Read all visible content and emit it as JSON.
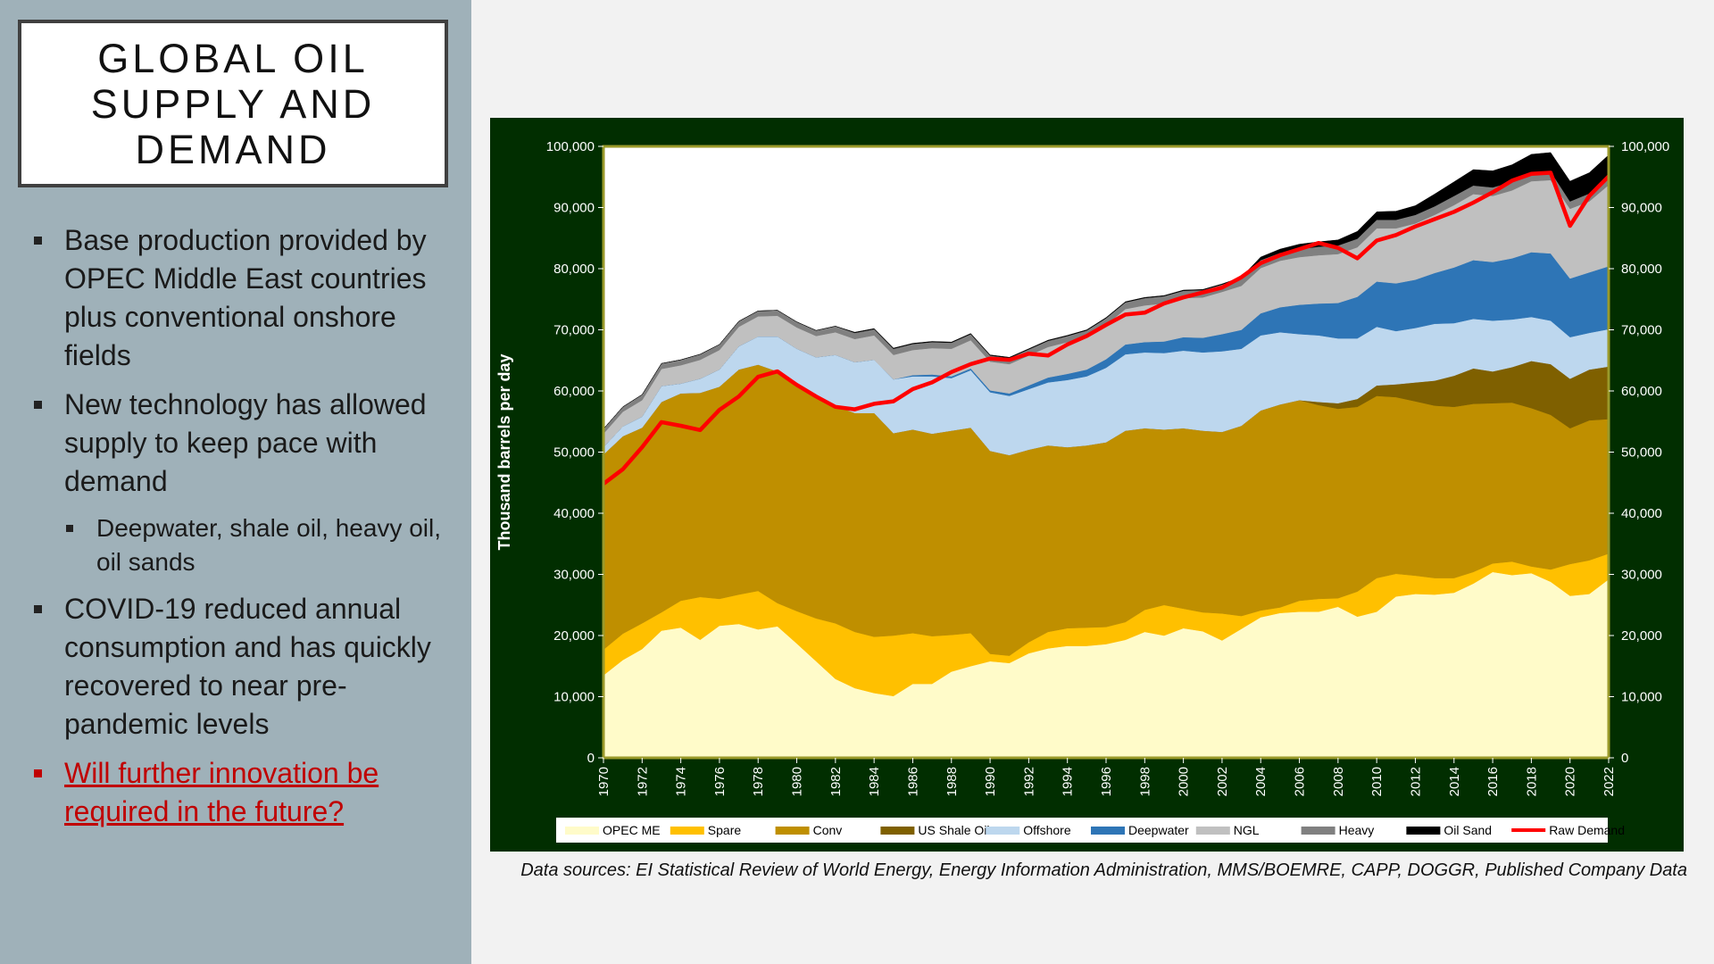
{
  "slide": {
    "title": "GLOBAL OIL\nSUPPLY AND\nDEMAND",
    "bullets": [
      {
        "text": "Base production provided by OPEC Middle East countries plus conventional onshore fields",
        "level": 1,
        "style": "normal"
      },
      {
        "text": "New technology has allowed supply to keep pace with demand",
        "level": 1,
        "style": "normal"
      },
      {
        "text": "Deepwater, shale oil, heavy oil, oil sands",
        "level": 2,
        "style": "normal"
      },
      {
        "text": "COVID-19 reduced annual consumption and has quickly recovered to near pre-pandemic levels",
        "level": 1,
        "style": "normal"
      },
      {
        "text": "Will further innovation be required in the future?",
        "level": 1,
        "style": "red-link"
      }
    ],
    "source_note": "Data sources: EI Statistical Review of World Energy, Energy Information Administration, MMS/BOEMRE, CAPP, DOGGR, Published Company Data"
  },
  "colors": {
    "panel_bg": "#9fb1b9",
    "chart_frame": "#012e00",
    "plot_border": "#9a9a2a",
    "accent_red": "#c00000"
  },
  "chart_data": {
    "type": "area",
    "stacked": true,
    "title": "",
    "xlabel": "",
    "ylabel": "Thousand barrels per day",
    "ylim": [
      0,
      100000
    ],
    "yticks": [
      "0",
      "10,000",
      "20,000",
      "30,000",
      "40,000",
      "50,000",
      "60,000",
      "70,000",
      "80,000",
      "90,000",
      "100,000"
    ],
    "secondary_yaxis": true,
    "grid": false,
    "legend_position": "bottom",
    "x": [
      1970,
      1971,
      1972,
      1973,
      1974,
      1975,
      1976,
      1977,
      1978,
      1979,
      1980,
      1981,
      1982,
      1983,
      1984,
      1985,
      1986,
      1987,
      1988,
      1989,
      1990,
      1991,
      1992,
      1993,
      1994,
      1995,
      1996,
      1997,
      1998,
      1999,
      2000,
      2001,
      2002,
      2003,
      2004,
      2005,
      2006,
      2007,
      2008,
      2009,
      2010,
      2011,
      2012,
      2013,
      2014,
      2015,
      2016,
      2017,
      2018,
      2019,
      2020,
      2021,
      2022
    ],
    "xtick_labels": [
      "1970",
      "1972",
      "1974",
      "1976",
      "1978",
      "1980",
      "1982",
      "1984",
      "1986",
      "1988",
      "1990",
      "1992",
      "1994",
      "1996",
      "1998",
      "2000",
      "2002",
      "2004",
      "2006",
      "2008",
      "2010",
      "2012",
      "2014",
      "2016",
      "2018",
      "2020",
      "2022"
    ],
    "series": [
      {
        "name": "OPEC ME",
        "color": "#fffbc9",
        "values": [
          13500,
          16000,
          17800,
          20800,
          21300,
          19300,
          21600,
          21900,
          21000,
          21500,
          18700,
          15800,
          12900,
          11400,
          10600,
          10100,
          12100,
          12100,
          14100,
          15000,
          15800,
          15500,
          17100,
          17900,
          18300,
          18300,
          18600,
          19300,
          20600,
          20000,
          21200,
          20700,
          19200,
          21100,
          23000,
          23700,
          23900,
          23900,
          24700,
          23100,
          23900,
          26400,
          26800,
          26700,
          27000,
          28500,
          30400,
          29900,
          30200,
          28800,
          26500,
          26800,
          29200
        ]
      },
      {
        "name": "Spare",
        "color": "#ffc000",
        "values": [
          4200,
          4300,
          4200,
          3000,
          4400,
          7000,
          4400,
          4800,
          6300,
          3800,
          5300,
          7000,
          9100,
          9200,
          9200,
          9900,
          8300,
          7800,
          6000,
          5400,
          1200,
          1200,
          1800,
          2700,
          2900,
          3000,
          2800,
          2900,
          3600,
          5000,
          3200,
          3100,
          4400,
          2100,
          1100,
          900,
          1800,
          2100,
          1400,
          4100,
          5500,
          3700,
          3000,
          2700,
          2400,
          1900,
          1400,
          2200,
          1100,
          2000,
          5200,
          5500,
          4200
        ]
      },
      {
        "name": "Conv",
        "color": "#bf8f00",
        "values": [
          31900,
          32300,
          32000,
          34400,
          33900,
          33400,
          34700,
          36800,
          37000,
          37900,
          36800,
          36300,
          35600,
          35800,
          36600,
          33100,
          33300,
          33100,
          33400,
          33600,
          33200,
          32800,
          31500,
          30500,
          29600,
          29800,
          30200,
          31300,
          29700,
          28700,
          29500,
          29700,
          29700,
          31100,
          32700,
          33200,
          32800,
          31700,
          31000,
          30200,
          29800,
          28900,
          28500,
          28200,
          28000,
          27500,
          26200,
          26000,
          25900,
          25300,
          22200,
          22900,
          22000
        ]
      },
      {
        "name": "US Shale Oil",
        "color": "#7f6000",
        "values": [
          0,
          0,
          0,
          0,
          0,
          0,
          0,
          0,
          0,
          0,
          0,
          0,
          0,
          0,
          0,
          0,
          0,
          0,
          0,
          0,
          0,
          0,
          0,
          0,
          0,
          0,
          0,
          0,
          0,
          0,
          0,
          0,
          0,
          0,
          0,
          0,
          0,
          500,
          900,
          1300,
          1700,
          2100,
          3100,
          4100,
          5100,
          5800,
          5200,
          5800,
          7700,
          8300,
          8100,
          8300,
          8600
        ]
      },
      {
        "name": "Offshore",
        "color": "#bdd7ee",
        "values": [
          1200,
          1600,
          1800,
          2600,
          1600,
          2300,
          2800,
          3800,
          4600,
          5700,
          6100,
          6400,
          8300,
          8300,
          8700,
          8800,
          8700,
          9400,
          8600,
          9400,
          9600,
          9700,
          9900,
          10300,
          11000,
          11300,
          12200,
          12500,
          12400,
          12500,
          12700,
          12800,
          13200,
          12600,
          12300,
          11800,
          10800,
          10900,
          10600,
          9900,
          9600,
          8700,
          8900,
          9300,
          8600,
          8100,
          8300,
          7800,
          7200,
          7100,
          6800,
          6000,
          6100
        ]
      },
      {
        "name": "Deepwater",
        "color": "#2e75b6",
        "values": [
          0,
          0,
          0,
          0,
          0,
          0,
          0,
          0,
          0,
          0,
          0,
          0,
          0,
          0,
          0,
          0,
          200,
          300,
          300,
          300,
          300,
          400,
          600,
          800,
          1000,
          1100,
          1400,
          1600,
          1700,
          1900,
          2200,
          2400,
          2800,
          3100,
          3600,
          4100,
          4800,
          5200,
          5800,
          6800,
          7400,
          7800,
          7900,
          8300,
          9100,
          9600,
          9600,
          10000,
          10600,
          11000,
          9600,
          9900,
          10300
        ]
      },
      {
        "name": "NGL",
        "color": "#c0c0c0",
        "values": [
          2200,
          2400,
          2700,
          2800,
          3000,
          3100,
          3200,
          3200,
          3300,
          3400,
          3500,
          3500,
          3700,
          3800,
          4000,
          4000,
          4100,
          4300,
          4500,
          4600,
          4700,
          4800,
          4900,
          5000,
          5200,
          5300,
          5600,
          5800,
          6000,
          6200,
          6400,
          6600,
          6900,
          7200,
          7400,
          7600,
          7800,
          7900,
          8000,
          8100,
          8700,
          9000,
          9200,
          9500,
          10200,
          10800,
          10800,
          11100,
          11600,
          12000,
          11400,
          11600,
          13300
        ]
      },
      {
        "name": "Heavy",
        "color": "#808080",
        "values": [
          800,
          800,
          900,
          900,
          900,
          900,
          900,
          900,
          900,
          900,
          900,
          900,
          1000,
          1000,
          1000,
          1000,
          1000,
          1000,
          1000,
          1000,
          1000,
          1000,
          1000,
          1000,
          1000,
          1100,
          1100,
          1100,
          1200,
          1200,
          1200,
          1200,
          1200,
          1300,
          1300,
          1300,
          1300,
          1400,
          1400,
          1400,
          1400,
          1400,
          1400,
          1400,
          1500,
          1400,
          1400,
          1400,
          1400,
          1400,
          1200,
          1300,
          1400
        ]
      },
      {
        "name": "Oil Sand",
        "color": "#000000",
        "values": [
          0,
          0,
          0,
          0,
          0,
          0,
          0,
          0,
          0,
          0,
          0,
          0,
          0,
          100,
          100,
          100,
          100,
          100,
          100,
          100,
          100,
          100,
          100,
          100,
          100,
          100,
          100,
          100,
          100,
          100,
          100,
          100,
          100,
          100,
          500,
          600,
          800,
          800,
          900,
          1200,
          1300,
          1400,
          1500,
          2000,
          2300,
          2600,
          2700,
          2800,
          3000,
          3100,
          3300,
          3400,
          3500
        ]
      }
    ],
    "line_series": {
      "name": "Raw Demand",
      "color": "#ff0000",
      "values": [
        44800,
        47200,
        50800,
        54900,
        54300,
        53600,
        56900,
        59100,
        62300,
        63200,
        61000,
        59100,
        57400,
        57000,
        57900,
        58300,
        60300,
        61400,
        63100,
        64400,
        65300,
        65100,
        66100,
        65800,
        67600,
        69000,
        70800,
        72500,
        72800,
        74300,
        75300,
        76100,
        76900,
        78600,
        80900,
        82200,
        83200,
        84200,
        83400,
        81700,
        84600,
        85500,
        86900,
        88100,
        89300,
        90800,
        92500,
        94400,
        95500,
        95700,
        87000,
        91900,
        95100
      ]
    }
  }
}
